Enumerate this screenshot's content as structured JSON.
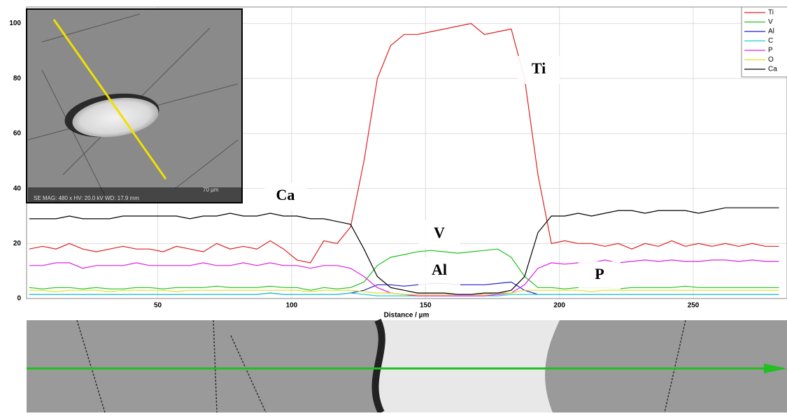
{
  "chart_data": {
    "type": "line",
    "x_label": "Distance / µm",
    "x": [
      2,
      7,
      12,
      17,
      22,
      27,
      32,
      37,
      42,
      47,
      52,
      57,
      62,
      67,
      72,
      77,
      82,
      87,
      92,
      97,
      102,
      107,
      112,
      117,
      122,
      127,
      132,
      137,
      142,
      147,
      152,
      157,
      162,
      167,
      172,
      177,
      182,
      187,
      192,
      197,
      202,
      207,
      212,
      217,
      222,
      227,
      232,
      237,
      242,
      247,
      252,
      257,
      262,
      267,
      272,
      277,
      282
    ],
    "series": [
      {
        "name": "Ti",
        "color": "#e02020",
        "values": [
          18,
          19,
          18,
          20,
          18,
          17,
          18,
          19,
          18,
          18,
          17,
          19,
          18,
          17,
          20,
          18,
          19,
          18,
          21,
          18,
          14,
          13,
          21,
          20,
          26,
          50,
          80,
          92,
          96,
          96,
          97,
          98,
          99,
          100,
          96,
          97,
          98,
          80,
          45,
          20,
          21,
          20,
          20,
          19,
          20,
          18,
          20,
          19,
          21,
          19,
          20,
          19,
          20,
          19,
          20,
          19,
          19
        ]
      },
      {
        "name": "V",
        "color": "#20c020",
        "values": [
          4,
          3.5,
          4,
          4,
          3.5,
          4,
          3.5,
          3.5,
          4,
          4,
          3.5,
          4,
          4,
          4,
          4.5,
          4,
          4,
          4,
          4.5,
          4,
          4,
          3,
          4,
          3.5,
          4,
          6,
          12,
          15,
          16,
          17,
          17.5,
          17,
          16.5,
          17,
          17.5,
          18,
          15,
          8,
          4,
          4,
          3.5,
          4,
          4,
          4,
          3.5,
          4,
          4,
          4,
          4,
          4.5,
          4,
          4,
          4,
          4,
          4,
          4,
          4
        ]
      },
      {
        "name": "Al",
        "color": "#2020d0",
        "values": [
          1.5,
          1.5,
          1.5,
          1.5,
          1.5,
          1.5,
          1.5,
          1.5,
          1.5,
          1.5,
          1.5,
          1.5,
          1.5,
          1.5,
          1.5,
          1.5,
          1.5,
          1.5,
          2,
          1.5,
          1.5,
          1.5,
          1.5,
          1.5,
          2,
          3,
          5,
          5,
          4.5,
          5,
          5.5,
          5.5,
          5,
          5,
          5,
          5.5,
          6,
          3,
          1.5,
          1.5,
          1.5,
          1.5,
          1.5,
          1.5,
          1.5,
          1.5,
          1.5,
          1.5,
          1.5,
          1.5,
          1.5,
          1.5,
          1.5,
          1.5,
          1.5,
          1.5,
          1.5
        ]
      },
      {
        "name": "C",
        "color": "#20d0d0",
        "values": [
          1.5,
          1.5,
          1.5,
          1.5,
          1.5,
          1.5,
          1.5,
          1.5,
          1.5,
          1.5,
          1.5,
          1.5,
          1.5,
          1.5,
          1.5,
          1.5,
          1.5,
          1.5,
          2,
          1.5,
          1.5,
          1.5,
          1.5,
          1.5,
          2,
          1.5,
          1,
          1,
          1,
          1,
          1,
          1,
          1,
          1,
          1,
          1,
          1.5,
          1.5,
          1.5,
          1.5,
          1.5,
          1.5,
          1.5,
          1.5,
          1.5,
          1.5,
          1.5,
          1.5,
          1.5,
          1.5,
          1.5,
          1.5,
          1.5,
          1.5,
          1.5,
          1.5,
          1.5
        ]
      },
      {
        "name": "P",
        "color": "#e020e0",
        "values": [
          12,
          12,
          13,
          13,
          11,
          12,
          12,
          12,
          13,
          12,
          12,
          12,
          12,
          13,
          12,
          12,
          13,
          12,
          13,
          12,
          12,
          11,
          12,
          12,
          11,
          8,
          4,
          2,
          1.5,
          1,
          1,
          1,
          1,
          1,
          1,
          1.5,
          2,
          5,
          11,
          13,
          12.5,
          13,
          13,
          14,
          13,
          13.5,
          14,
          13.5,
          14,
          13.5,
          13.5,
          14,
          14,
          13.5,
          14,
          13.5,
          13.5
        ]
      },
      {
        "name": "O",
        "color": "#e0e020",
        "values": [
          3,
          3,
          2.5,
          3,
          3,
          3,
          2.5,
          3,
          3,
          3,
          3,
          2.5,
          3,
          3,
          3,
          3,
          3,
          3,
          3,
          3,
          3,
          2.5,
          3,
          3,
          3,
          2.5,
          2,
          2,
          1.5,
          1.5,
          1.5,
          1.5,
          1.5,
          1.5,
          1.5,
          2,
          2,
          3,
          3,
          3,
          3,
          3,
          2.5,
          3,
          3,
          3,
          3,
          3,
          3,
          3,
          3,
          3,
          3,
          3,
          3,
          3,
          3
        ]
      },
      {
        "name": "Ca",
        "color": "#000000",
        "values": [
          29,
          29,
          29,
          30,
          29,
          29,
          29,
          30,
          30,
          30,
          30,
          30,
          29,
          30,
          30,
          31,
          30,
          30,
          31,
          30,
          30,
          29,
          29,
          28,
          27,
          18,
          8,
          4,
          3,
          2,
          2,
          2,
          1.5,
          1.5,
          2,
          2,
          3,
          8,
          24,
          30,
          30,
          31,
          30,
          31,
          32,
          32,
          31,
          32,
          32,
          32,
          31,
          32,
          33,
          33,
          33,
          33,
          33
        ]
      }
    ],
    "xlim": [
      1,
      285
    ],
    "xticks": [
      50,
      100,
      150,
      200,
      250
    ],
    "ylim": [
      0,
      106
    ],
    "yticks": [
      0,
      20,
      40,
      60,
      80,
      100
    ],
    "grid": true,
    "legend": "top-right",
    "annotations": [
      "Ti",
      "Ca",
      "V",
      "Al",
      "P"
    ],
    "inset": {
      "scale": "70 µm",
      "info": "SE MAG: 480 x HV: 20.0 kV WD: 17.9 mm"
    }
  }
}
